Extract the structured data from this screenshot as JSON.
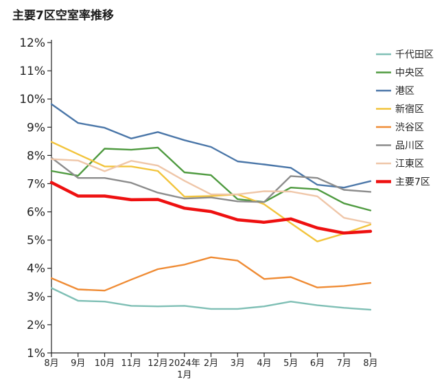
{
  "chart_data": {
    "type": "line",
    "title": "主要7区空室率推移",
    "xlabel": "",
    "ylabel": "",
    "categories": [
      "8月",
      "9月",
      "10月",
      "11月",
      "12月",
      "2024年\n1月",
      "2月",
      "3月",
      "4月",
      "5月",
      "6月",
      "7月",
      "8月"
    ],
    "y_ticks": [
      "1%",
      "2%",
      "3%",
      "4%",
      "5%",
      "6%",
      "7%",
      "8%",
      "9%",
      "10%",
      "11%",
      "12%"
    ],
    "ylim": [
      1,
      12
    ],
    "grid": false,
    "legend_position": "right",
    "series": [
      {
        "name": "千代田区",
        "color": "#7fbfb5",
        "values": [
          3.3,
          2.85,
          2.82,
          2.67,
          2.65,
          2.67,
          2.56,
          2.56,
          2.65,
          2.82,
          2.69,
          2.6,
          2.53
        ]
      },
      {
        "name": "中央区",
        "color": "#4e9a3f",
        "values": [
          7.45,
          7.28,
          8.24,
          8.2,
          8.28,
          7.4,
          7.3,
          6.45,
          6.35,
          6.86,
          6.8,
          6.3,
          6.05
        ]
      },
      {
        "name": "港区",
        "color": "#4a76a8",
        "values": [
          9.82,
          9.15,
          8.98,
          8.6,
          8.83,
          8.54,
          8.3,
          7.79,
          7.68,
          7.56,
          6.96,
          6.86,
          7.09
        ]
      },
      {
        "name": "新宿区",
        "color": "#f2c43c",
        "values": [
          8.48,
          8.04,
          7.61,
          7.61,
          7.45,
          6.54,
          6.56,
          6.62,
          6.27,
          5.6,
          4.95,
          5.23,
          5.55
        ]
      },
      {
        "name": "渋谷区",
        "color": "#ef8b34",
        "values": [
          3.65,
          3.25,
          3.21,
          3.6,
          3.97,
          4.13,
          4.39,
          4.27,
          3.62,
          3.69,
          3.32,
          3.37,
          3.48
        ]
      },
      {
        "name": "品川区",
        "color": "#8c8c8c",
        "values": [
          7.92,
          7.2,
          7.2,
          7.03,
          6.68,
          6.47,
          6.51,
          6.37,
          6.35,
          7.27,
          7.2,
          6.78,
          6.71
        ]
      },
      {
        "name": "江東区",
        "color": "#efc6a8",
        "values": [
          7.87,
          7.82,
          7.44,
          7.81,
          7.64,
          7.1,
          6.62,
          6.62,
          6.73,
          6.72,
          6.55,
          5.79,
          5.6
        ]
      },
      {
        "name": "主要7区",
        "color": "#ee1010",
        "values": [
          7.04,
          6.56,
          6.56,
          6.43,
          6.44,
          6.13,
          6.01,
          5.72,
          5.63,
          5.75,
          5.43,
          5.25,
          5.31
        ]
      }
    ]
  }
}
